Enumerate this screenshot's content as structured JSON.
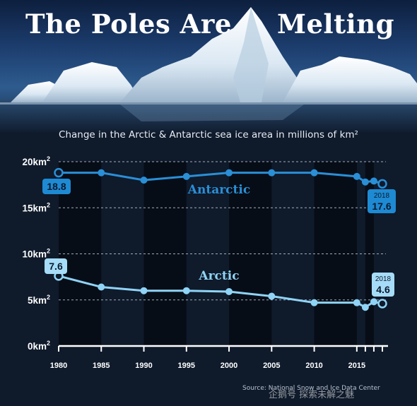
{
  "header": {
    "title_left": "The Poles Are",
    "title_right": "Melting",
    "subtitle": "Change in the Arctic & Antarctic sea ice area in millions of km²"
  },
  "source": "Source: National Snow and Ice Data Center",
  "watermark": "企鹅号 探索未解之魅",
  "colors": {
    "background": "#0f1a2b",
    "antarctic": "#2a8fd6",
    "arctic": "#8fd3f5",
    "callout_antarctic": "#1e8ad3",
    "callout_arctic": "#a6dcf7",
    "grid": "#c9d3de",
    "text": "#ffffff"
  },
  "chart_data": {
    "type": "line",
    "title": "Change in the Arctic & Antarctic sea ice area in millions of km²",
    "xlabel": "",
    "ylabel": "",
    "xlim": [
      1980,
      2018
    ],
    "ylim": [
      0,
      20
    ],
    "x_ticks": [
      1980,
      1985,
      1990,
      1995,
      2000,
      2005,
      2010,
      2015
    ],
    "x_tick_labels": [
      "1980",
      "1985",
      "1990",
      "1995",
      "2000",
      "2005",
      "2010",
      "2015"
    ],
    "y_ticks": [
      0,
      5,
      10,
      15,
      20
    ],
    "y_tick_labels": [
      "0km²",
      "5km²",
      "10km²",
      "15km²",
      "20km²"
    ],
    "grid": "horizontal dashed",
    "shaded_bands": [
      [
        1980,
        1985
      ],
      [
        1990,
        1995
      ],
      [
        2000,
        2005
      ],
      [
        2010,
        2015
      ],
      [
        2016,
        2017
      ]
    ],
    "series": [
      {
        "name": "Antarctic",
        "color": "#2a8fd6",
        "x": [
          1980,
          1985,
          1990,
          1995,
          2000,
          2005,
          2010,
          2015,
          2016,
          2017,
          2018
        ],
        "y": [
          18.8,
          18.8,
          18.0,
          18.4,
          18.8,
          18.8,
          18.8,
          18.4,
          17.8,
          17.9,
          17.6
        ],
        "callouts": [
          {
            "x": 1980,
            "label": "18.8"
          },
          {
            "x": 2018,
            "year": "2018",
            "label": "17.6"
          }
        ]
      },
      {
        "name": "Arctic",
        "color": "#8fd3f5",
        "x": [
          1980,
          1985,
          1990,
          1995,
          2000,
          2005,
          2010,
          2015,
          2016,
          2017,
          2018
        ],
        "y": [
          7.6,
          6.4,
          6.0,
          6.0,
          5.9,
          5.4,
          4.7,
          4.7,
          4.2,
          4.8,
          4.6
        ],
        "callouts": [
          {
            "x": 1980,
            "label": "7.6"
          },
          {
            "x": 2018,
            "year": "2018",
            "label": "4.6"
          }
        ]
      }
    ]
  }
}
